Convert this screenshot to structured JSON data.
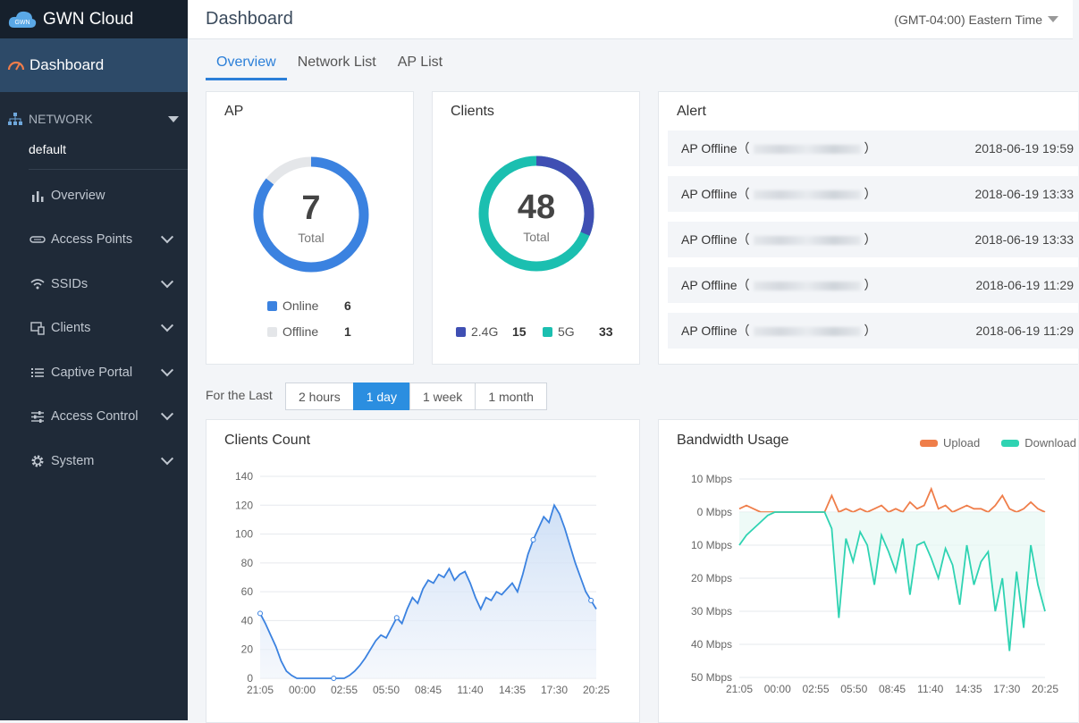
{
  "brand": {
    "title": "GWN Cloud",
    "logo_text": "GWN"
  },
  "sidebar": {
    "dashboard_label": "Dashboard",
    "network_label": "NETWORK",
    "network_name": "default",
    "items": [
      {
        "label": "Overview",
        "icon": "bar-chart-icon"
      },
      {
        "label": "Access Points",
        "icon": "access-point-icon"
      },
      {
        "label": "SSIDs",
        "icon": "wifi-icon"
      },
      {
        "label": "Clients",
        "icon": "devices-icon"
      },
      {
        "label": "Captive Portal",
        "icon": "list-icon"
      },
      {
        "label": "Access Control",
        "icon": "sliders-icon"
      },
      {
        "label": "System",
        "icon": "gear-icon"
      }
    ]
  },
  "header": {
    "title": "Dashboard",
    "timezone": "(GMT-04:00) Eastern Time"
  },
  "tabs": [
    {
      "label": "Overview"
    },
    {
      "label": "Network List"
    },
    {
      "label": "AP List"
    }
  ],
  "ap": {
    "title": "AP",
    "total": "7",
    "total_label": "Total",
    "online_label": "Online",
    "online": "6",
    "offline_label": "Offline",
    "offline": "1"
  },
  "clients": {
    "title": "Clients",
    "total": "48",
    "total_label": "Total",
    "g24_label": "2.4G",
    "g24": "15",
    "g5_label": "5G",
    "g5": "33"
  },
  "alert": {
    "title": "Alert",
    "rows": [
      {
        "msg": "AP Offline",
        "time": "2018-06-19 19:59"
      },
      {
        "msg": "AP Offline",
        "time": "2018-06-19 13:33"
      },
      {
        "msg": "AP Offline",
        "time": "2018-06-19 13:33"
      },
      {
        "msg": "AP Offline",
        "time": "2018-06-19 11:29"
      },
      {
        "msg": "AP Offline",
        "time": "2018-06-19 11:29"
      }
    ]
  },
  "range": {
    "label": "For the Last",
    "options": [
      "2 hours",
      "1 day",
      "1 week",
      "1 month"
    ],
    "selected": 1
  },
  "colors": {
    "accent": "#2b7fd8",
    "online": "#3b82e0",
    "offline": "#e4e6e9",
    "g24": "#3f4fb3",
    "g5": "#1bbfb0",
    "upload": "#ef7e4a",
    "download": "#2fd3b2"
  },
  "chart_data": [
    {
      "type": "area",
      "title": "Clients Count",
      "x_ticks": [
        "21:05",
        "00:00",
        "02:55",
        "05:50",
        "08:45",
        "11:40",
        "14:35",
        "17:30",
        "20:25"
      ],
      "y_ticks": [
        0,
        20,
        40,
        60,
        80,
        100,
        120,
        140
      ],
      "ylim": [
        0,
        140
      ],
      "values": [
        45,
        38,
        30,
        22,
        12,
        5,
        2,
        0,
        0,
        0,
        0,
        0,
        0,
        0,
        0,
        0,
        0,
        2,
        5,
        9,
        14,
        20,
        26,
        30,
        28,
        35,
        42,
        38,
        48,
        56,
        52,
        62,
        68,
        66,
        72,
        70,
        76,
        68,
        72,
        74,
        66,
        56,
        48,
        56,
        54,
        60,
        58,
        62,
        66,
        60,
        72,
        86,
        96,
        104,
        112,
        108,
        120,
        114,
        104,
        92,
        80,
        70,
        60,
        54,
        48
      ]
    },
    {
      "type": "line",
      "title": "Bandwidth Usage",
      "legend": [
        "Upload",
        "Download"
      ],
      "x_ticks": [
        "21:05",
        "00:00",
        "02:55",
        "05:50",
        "08:45",
        "11:40",
        "14:35",
        "17:30",
        "20:25"
      ],
      "y_ticks": [
        "10 Mbps",
        "0 Mbps",
        "10 Mbps",
        "20 Mbps",
        "30 Mbps",
        "40 Mbps",
        "50 Mbps"
      ],
      "ylim": [
        -50,
        10
      ],
      "series": [
        {
          "name": "Upload",
          "values": [
            1,
            2,
            1,
            0,
            0,
            0,
            0,
            0,
            0,
            0,
            0,
            0,
            0,
            5,
            0,
            1,
            0,
            1,
            0,
            1,
            2,
            0,
            1,
            0,
            3,
            1,
            2,
            7,
            1,
            2,
            0,
            1,
            2,
            1,
            1,
            0,
            2,
            5,
            1,
            0,
            1,
            3,
            1,
            0
          ]
        },
        {
          "name": "Download",
          "values": [
            -10,
            -7,
            -5,
            -3,
            -1,
            0,
            0,
            0,
            0,
            0,
            0,
            0,
            0,
            -5,
            -32,
            -8,
            -15,
            -6,
            -10,
            -22,
            -7,
            -12,
            -18,
            -8,
            -25,
            -10,
            -9,
            -14,
            -20,
            -11,
            -16,
            -28,
            -10,
            -22,
            -15,
            -12,
            -30,
            -20,
            -42,
            -18,
            -35,
            -10,
            -22,
            -30
          ]
        }
      ]
    }
  ]
}
